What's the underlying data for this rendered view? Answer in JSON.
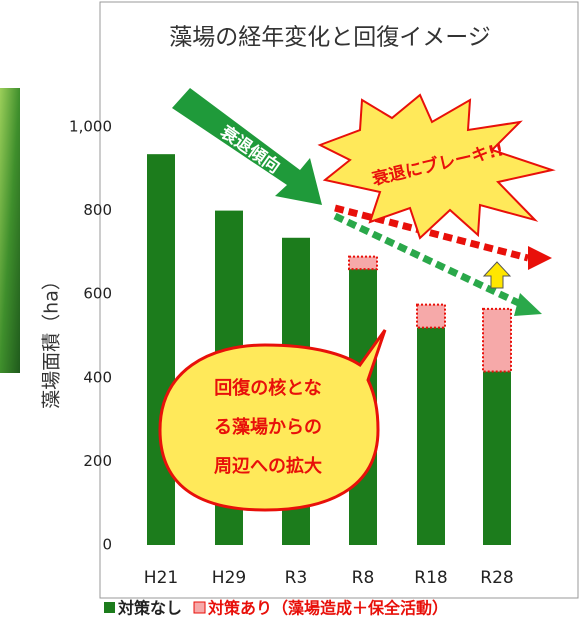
{
  "chart_data": {
    "type": "stacked-bar",
    "title": "藻場の経年変化と回復イメージ",
    "y_label": "藻場面積（ha）",
    "categories": [
      "H21",
      "H29",
      "R3",
      "R8",
      "R18",
      "R28"
    ],
    "series": [
      {
        "name": "対策なし",
        "color": "#1c7c1c",
        "values": [
          935,
          800,
          735,
          660,
          520,
          415
        ]
      },
      {
        "name": "対策あり（藻場造成＋保全活動）",
        "color": "#f6a9a9",
        "values": [
          null,
          null,
          null,
          30,
          55,
          150
        ]
      }
    ],
    "ylim": [
      0,
      1000
    ],
    "yticks": [
      0,
      200,
      400,
      600,
      800,
      {
        "value": 1000,
        "label": "1,000"
      }
    ],
    "annotations": {
      "trend": "衰退傾向",
      "brake": "衰退にブレーキ!!",
      "bubble": [
        "回復の核とな",
        "る藻場からの",
        "周辺への拡大"
      ]
    }
  }
}
